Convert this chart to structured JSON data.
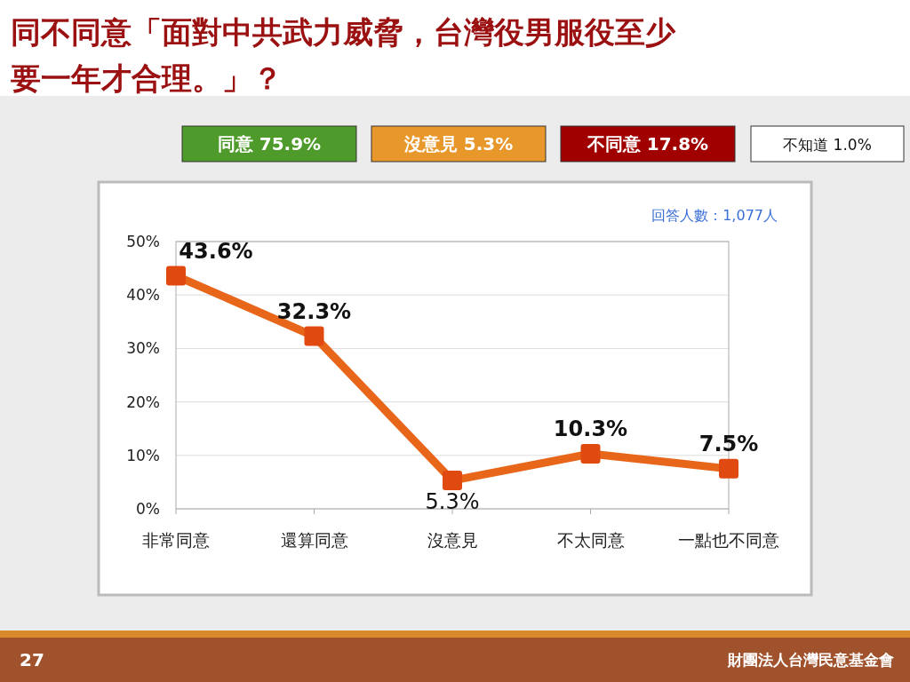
{
  "chart_data": {
    "type": "line",
    "title": "同不同意「面對中共武力威脅，台灣役男服役至少要一年才合理。」？",
    "categories": [
      "非常同意",
      "還算同意",
      "沒意見",
      "不太同意",
      "一點也不同意"
    ],
    "series": [
      {
        "color": "#e8661a",
        "values": [
          43.6,
          32.3,
          5.3,
          10.3,
          7.5
        ],
        "value_labels": [
          "43.6%",
          "32.3%",
          "5.3%",
          "10.3%",
          "7.5%"
        ]
      }
    ],
    "ylim": [
      0,
      50
    ],
    "yticks": [
      {
        "value": 0,
        "label": "0%"
      },
      {
        "value": 10,
        "label": "10%"
      },
      {
        "value": 20,
        "label": "20%"
      },
      {
        "value": 30,
        "label": "30%"
      },
      {
        "value": 40,
        "label": "40%"
      },
      {
        "value": 50,
        "label": "50%"
      }
    ],
    "grid": "y",
    "marker": "square",
    "line_style": "solid",
    "annotations": [
      "同意 75.9%",
      "沒意見 5.3%",
      "不同意 17.8%",
      "不知道 1.0%",
      "回答人數：1,077人",
      "27",
      "財團法人台灣民意基金會"
    ]
  }
}
